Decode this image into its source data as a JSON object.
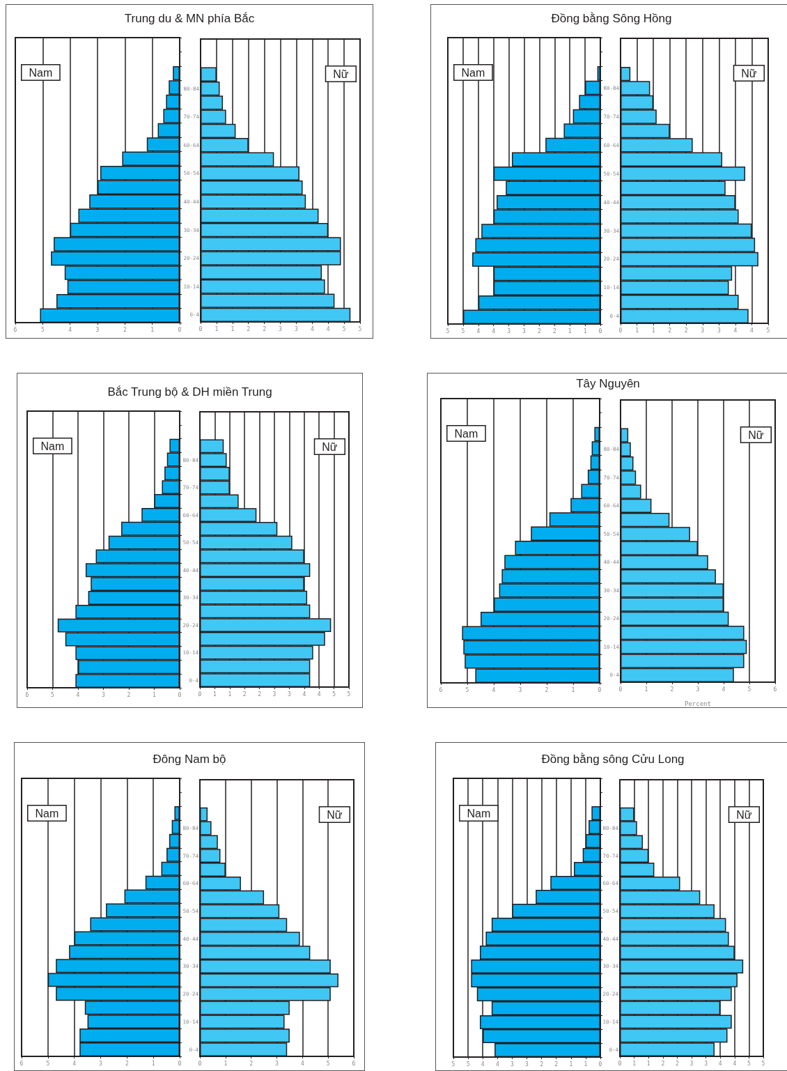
{
  "chart_data": [
    {
      "type": "bar",
      "orientation": "horizontal",
      "title": "Trung du & MN phía Bắc",
      "annotations": [
        "Nam"
      ],
      "categories": [
        null,
        null,
        null,
        null,
        null,
        null,
        null,
        null,
        null,
        null,
        null,
        null,
        null,
        null,
        null,
        null,
        null,
        null,
        null,
        null
      ],
      "values": [
        null,
        null,
        0.25,
        0.4,
        0.5,
        0.6,
        0.8,
        1.2,
        2.1,
        2.9,
        3.0,
        3.3,
        3.7,
        4.0,
        4.6,
        4.7,
        4.2,
        4.1,
        4.5,
        5.1
      ],
      "color": "#00adef",
      "xlim": [
        6,
        0
      ],
      "xticks": [
        6,
        5,
        4,
        3,
        2,
        1,
        0
      ],
      "grid": "x",
      "tick_labels": "x"
    },
    {
      "type": "bar",
      "orientation": "horizontal",
      "annotations": [
        "Nữ"
      ],
      "categories": [
        null,
        null,
        null,
        "80-84",
        null,
        "70-74",
        null,
        "60-64",
        null,
        "50-54",
        null,
        "40-44",
        null,
        "30-34",
        null,
        "20-24",
        null,
        "10-14",
        null,
        "0-4"
      ],
      "values": [
        null,
        null,
        0.5,
        0.6,
        0.7,
        0.8,
        1.1,
        1.5,
        2.3,
        3.1,
        3.2,
        3.3,
        3.7,
        4.0,
        4.4,
        4.4,
        3.8,
        3.9,
        4.2,
        4.7
      ],
      "color": "#40c7f4",
      "xlim": [
        0,
        5
      ],
      "xticks": [
        0,
        {
          "value": 0.5,
          "label": "1"
        },
        1,
        {
          "value": 1.5,
          "label": "2"
        },
        2,
        {
          "value": 2.5,
          "label": "3"
        },
        3,
        {
          "value": 3.5,
          "label": "4"
        },
        4,
        {
          "value": 4.5,
          "label": "5"
        },
        5
      ],
      "grid": "x"
    },
    {
      "type": "bar",
      "orientation": "horizontal",
      "title": "Đồng bằng Sông Hồng",
      "annotations": [
        "Nam"
      ],
      "categories": [
        null,
        null,
        null,
        null,
        null,
        null,
        null,
        null,
        null,
        null,
        null,
        null,
        null,
        null,
        null,
        null,
        null,
        null,
        null,
        null
      ],
      "values": [
        null,
        null,
        0.1,
        0.5,
        0.7,
        0.9,
        1.2,
        1.8,
        2.9,
        3.5,
        3.1,
        3.4,
        3.5,
        3.9,
        4.1,
        4.2,
        3.5,
        3.5,
        4.0,
        4.5
      ],
      "color": "#00adef",
      "xlim": [
        5,
        0
      ],
      "xticks": [
        5,
        {
          "value": 4.5,
          "label": "5"
        },
        4,
        {
          "value": 3.5,
          "label": "4"
        },
        3,
        {
          "value": 2.5,
          "label": "3"
        },
        2,
        {
          "value": 1.5,
          "label": "2"
        },
        1,
        {
          "value": 0.5,
          "label": "1"
        },
        0
      ],
      "grid": "x",
      "tick_labels": "x"
    },
    {
      "type": "bar",
      "orientation": "horizontal",
      "annotations": [
        "Nữ"
      ],
      "categories": [
        null,
        null,
        null,
        "80-84",
        null,
        "70-74",
        null,
        "60-64",
        null,
        "50-54",
        null,
        "40-44",
        null,
        "30-34",
        null,
        "20-24",
        null,
        "10-14",
        null,
        "0-4"
      ],
      "values": [
        null,
        null,
        0.3,
        0.9,
        1.0,
        1.1,
        1.5,
        2.2,
        3.1,
        3.8,
        3.2,
        3.5,
        3.6,
        4.0,
        4.1,
        4.2,
        3.4,
        3.3,
        3.6,
        3.9
      ],
      "color": "#40c7f4",
      "xlim": [
        0,
        4.5
      ],
      "xticks": [
        0,
        {
          "value": 0.5,
          "label": "1"
        },
        1,
        {
          "value": 1.5,
          "label": "2"
        },
        2,
        {
          "value": 2.5,
          "label": "3"
        },
        3,
        {
          "value": 3.5,
          "label": "4"
        },
        4,
        {
          "value": 4.5,
          "label": "5"
        }
      ],
      "grid": "x"
    },
    {
      "type": "bar",
      "orientation": "horizontal",
      "title": "Bắc Trung bộ & DH miền Trung",
      "annotations": [
        "Nam"
      ],
      "categories": [
        null,
        null,
        null,
        null,
        null,
        null,
        null,
        null,
        null,
        null,
        null,
        null,
        null,
        null,
        null,
        null,
        null,
        null,
        null,
        null
      ],
      "values": [
        null,
        null,
        0.4,
        0.5,
        0.6,
        0.7,
        1.0,
        1.5,
        2.3,
        2.8,
        3.3,
        3.7,
        3.5,
        3.6,
        4.1,
        4.8,
        4.5,
        4.1,
        4.0,
        4.1
      ],
      "color": "#00adef",
      "xlim": [
        6,
        0
      ],
      "xticks": [
        6,
        5,
        4,
        3,
        2,
        1,
        0
      ],
      "grid": "x",
      "tick_labels": "x"
    },
    {
      "type": "bar",
      "orientation": "horizontal",
      "annotations": [
        "Nữ"
      ],
      "categories": [
        null,
        null,
        null,
        "80-84",
        null,
        "70-74",
        null,
        "60-64",
        null,
        "50-54",
        null,
        "40-44",
        null,
        "30-34",
        null,
        "20-24",
        null,
        "10-14",
        null,
        "0-4"
      ],
      "values": [
        null,
        null,
        0.8,
        0.9,
        1.0,
        1.0,
        1.3,
        1.9,
        2.6,
        3.1,
        3.5,
        3.7,
        3.5,
        3.6,
        3.7,
        4.4,
        4.2,
        3.8,
        3.7,
        3.7
      ],
      "color": "#40c7f4",
      "xlim": [
        0,
        5
      ],
      "xticks": [
        0,
        {
          "value": 0.5,
          "label": "1"
        },
        1,
        {
          "value": 1.5,
          "label": "2"
        },
        2,
        {
          "value": 2.5,
          "label": "3"
        },
        3,
        {
          "value": 3.5,
          "label": "4"
        },
        4,
        {
          "value": 4.5,
          "label": "5"
        },
        5
      ],
      "grid": "x"
    },
    {
      "type": "bar",
      "orientation": "horizontal",
      "title": "Tây Nguyên",
      "annotations": [
        "Nam"
      ],
      "categories": [
        null,
        null,
        null,
        null,
        null,
        null,
        null,
        null,
        null,
        null,
        null,
        null,
        null,
        null,
        null,
        null,
        null,
        null,
        null,
        null
      ],
      "values": [
        null,
        null,
        0.2,
        0.3,
        0.35,
        0.45,
        0.7,
        1.1,
        1.9,
        2.6,
        3.2,
        3.6,
        3.7,
        3.8,
        4.0,
        4.5,
        5.2,
        5.15,
        5.1,
        4.7
      ],
      "color": "#00adef",
      "xlim": [
        6,
        0
      ],
      "xticks": [
        6,
        5,
        4,
        3,
        2,
        1,
        0
      ],
      "grid": "x",
      "tick_labels": "x"
    },
    {
      "type": "bar",
      "orientation": "horizontal",
      "annotations": [
        "Nữ"
      ],
      "xlabel": "Percent",
      "categories": [
        null,
        null,
        null,
        "80-84",
        null,
        "70-74",
        null,
        "60-64",
        null,
        "50-54",
        null,
        "40-44",
        null,
        "30-34",
        null,
        "20-24",
        null,
        "10-14",
        null,
        "0-4"
      ],
      "values": [
        null,
        null,
        0.3,
        0.4,
        0.5,
        0.6,
        0.8,
        1.2,
        1.9,
        2.7,
        3.0,
        3.4,
        3.7,
        4.0,
        4.0,
        4.2,
        4.8,
        4.9,
        4.8,
        4.4
      ],
      "color": "#40c7f4",
      "xlim": [
        0,
        6
      ],
      "xticks": [
        0,
        1,
        2,
        3,
        4,
        5,
        6
      ],
      "grid": "x"
    },
    {
      "type": "bar",
      "orientation": "horizontal",
      "title": "Đông Nam bộ",
      "annotations": [
        "Nam"
      ],
      "categories": [
        null,
        null,
        null,
        null,
        null,
        null,
        null,
        null,
        null,
        null,
        null,
        null,
        null,
        null,
        null,
        null,
        null,
        null,
        null,
        null
      ],
      "values": [
        null,
        null,
        0.2,
        0.3,
        0.4,
        0.5,
        0.7,
        1.3,
        2.1,
        2.8,
        3.4,
        4.0,
        4.2,
        4.7,
        5.0,
        4.7,
        3.6,
        3.5,
        3.8,
        3.8
      ],
      "color": "#00adef",
      "xlim": [
        6,
        0
      ],
      "xticks": [
        6,
        5,
        4,
        3,
        2,
        1,
        0
      ],
      "grid": "x",
      "tick_labels": "x"
    },
    {
      "type": "bar",
      "orientation": "horizontal",
      "annotations": [
        "Nữ"
      ],
      "categories": [
        null,
        null,
        null,
        "80-84",
        null,
        "70-74",
        null,
        "60-64",
        null,
        "50-54",
        null,
        "40-44",
        null,
        "30-34",
        null,
        "20-24",
        null,
        "10-14",
        null,
        "0-4"
      ],
      "values": [
        null,
        null,
        0.3,
        0.45,
        0.7,
        0.8,
        1.0,
        1.6,
        2.5,
        3.1,
        3.4,
        3.9,
        4.3,
        5.1,
        5.4,
        5.1,
        3.5,
        3.3,
        3.5,
        3.4
      ],
      "color": "#40c7f4",
      "xlim": [
        0,
        6
      ],
      "xticks": [
        0,
        1,
        2,
        3,
        4,
        5,
        6
      ],
      "grid": "x"
    },
    {
      "type": "bar",
      "orientation": "horizontal",
      "title": "Đồng bằng sông Cửu Long",
      "annotations": [
        "Nam"
      ],
      "categories": [
        null,
        null,
        null,
        null,
        null,
        null,
        null,
        null,
        null,
        null,
        null,
        null,
        null,
        null,
        null,
        null,
        null,
        null,
        null,
        null
      ],
      "values": [
        null,
        null,
        0.3,
        0.4,
        0.5,
        0.6,
        0.9,
        1.7,
        2.2,
        3.0,
        3.7,
        3.9,
        4.1,
        4.4,
        4.4,
        4.2,
        3.7,
        4.1,
        4.0,
        3.6
      ],
      "color": "#00adef",
      "xlim": [
        5,
        0
      ],
      "xticks": [
        5,
        {
          "value": 4.5,
          "label": "5"
        },
        4,
        {
          "value": 3.5,
          "label": "4"
        },
        3,
        {
          "value": 2.5,
          "label": "3"
        },
        2,
        {
          "value": 1.5,
          "label": "2"
        },
        1,
        {
          "value": 0.5,
          "label": "1"
        },
        0
      ],
      "grid": "x",
      "tick_labels": "x"
    },
    {
      "type": "bar",
      "orientation": "horizontal",
      "annotations": [
        "Nữ"
      ],
      "categories": [
        null,
        null,
        null,
        "80-84",
        null,
        "70-74",
        null,
        "60-64",
        null,
        "50-54",
        null,
        "40-44",
        null,
        "30-34",
        null,
        "20-24",
        null,
        "10-14",
        null,
        "0-4"
      ],
      "values": [
        null,
        null,
        0.5,
        0.6,
        0.8,
        1.0,
        1.2,
        2.1,
        2.8,
        3.3,
        3.7,
        3.8,
        4.0,
        4.3,
        4.1,
        3.9,
        3.5,
        3.9,
        3.75,
        3.3
      ],
      "color": "#40c7f4",
      "xlim": [
        0,
        5
      ],
      "xticks": [
        0,
        {
          "value": 0.5,
          "label": "1"
        },
        1,
        {
          "value": 1.5,
          "label": "2"
        },
        2,
        {
          "value": 2.5,
          "label": "3"
        },
        3,
        {
          "value": 3.5,
          "label": "4"
        },
        4,
        {
          "value": 4.5,
          "label": "5"
        },
        5
      ],
      "grid": "x"
    }
  ]
}
